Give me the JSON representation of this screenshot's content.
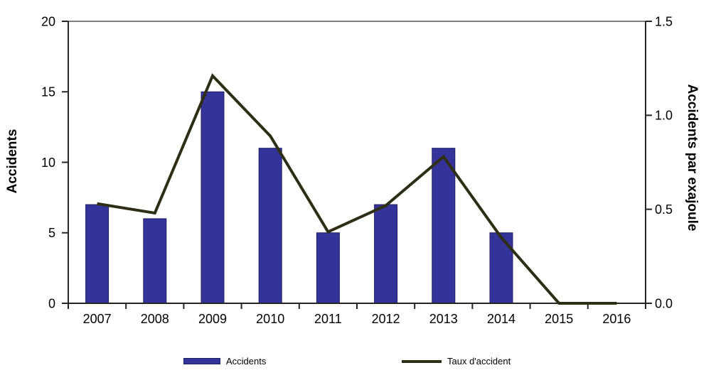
{
  "chart_data": {
    "type": "combo-bar-line",
    "title": "",
    "categories": [
      "2007",
      "2008",
      "2009",
      "2010",
      "2011",
      "2012",
      "2013",
      "2014",
      "2015",
      "2016"
    ],
    "series": [
      {
        "name": "Accidents",
        "type": "bar",
        "axis": "left",
        "values": [
          7,
          6,
          15,
          11,
          5,
          7,
          11,
          5,
          0,
          0
        ],
        "color": "#333399",
        "border_color": "#1F1F66"
      },
      {
        "name": "Taux d'accident",
        "type": "line",
        "axis": "right",
        "values": [
          0.53,
          0.48,
          1.21,
          0.89,
          0.38,
          0.52,
          0.78,
          0.35,
          0,
          0
        ],
        "color": "#2E2E14"
      }
    ],
    "left_axis": {
      "label": "Accidents",
      "min": 0,
      "max": 20,
      "ticks": [
        "0",
        "5",
        "10",
        "15",
        "20"
      ],
      "tick_values": [
        0,
        5,
        10,
        15,
        20
      ]
    },
    "right_axis": {
      "label": "Accidents par exajoule",
      "min": 0,
      "max": 1.5,
      "ticks": [
        "0.0",
        "0.5",
        "1.0",
        "1.5"
      ],
      "tick_values": [
        0,
        0.5,
        1,
        1.5
      ]
    },
    "legend": [
      {
        "label": "Accidents",
        "type": "bar"
      },
      {
        "label": "Taux d'accident",
        "type": "line"
      }
    ],
    "grid": false,
    "axis_color": "#262626",
    "frame_top_color": "#7F7F7F"
  }
}
